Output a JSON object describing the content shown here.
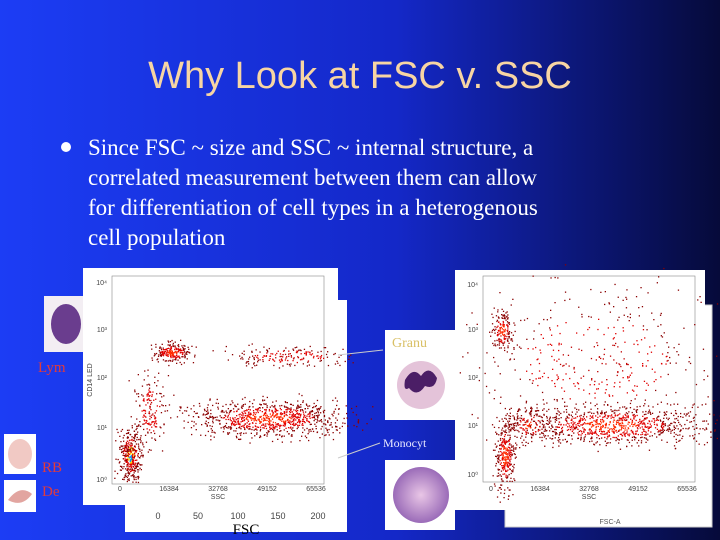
{
  "title": "Why Look at FSC v. SSC",
  "bullet": {
    "lines": [
      "Since FSC ~ size and SSC ~ internal structure, a",
      "correlated measurement between them can allow",
      "for differentiation of cell types in a heterogenous",
      "cell population"
    ]
  },
  "labels": {
    "granu": "Granu",
    "lym": "Lym",
    "monocyt": "Monocyt",
    "rb": "RB",
    "de": "De",
    "fsc": "FSC"
  },
  "back_plot": {
    "xticks": [
      "0",
      "50",
      "100",
      "150",
      "200"
    ],
    "axis_label": "FSC-A"
  },
  "left_plot": {
    "yticks": [
      "10⁴",
      "10³",
      "10²",
      "10¹",
      "10⁰"
    ],
    "xticks": [
      "0",
      "16384",
      "32768",
      "49152",
      "65536"
    ],
    "x_label": "SSC",
    "y_label": "CD14 LED"
  },
  "right_plot": {
    "yticks": [
      "10⁴",
      "10³",
      "10²",
      "10¹",
      "10⁰"
    ],
    "xticks": [
      "0",
      "16384",
      "32768",
      "49152",
      "65536"
    ],
    "x_label": "SSC"
  }
}
